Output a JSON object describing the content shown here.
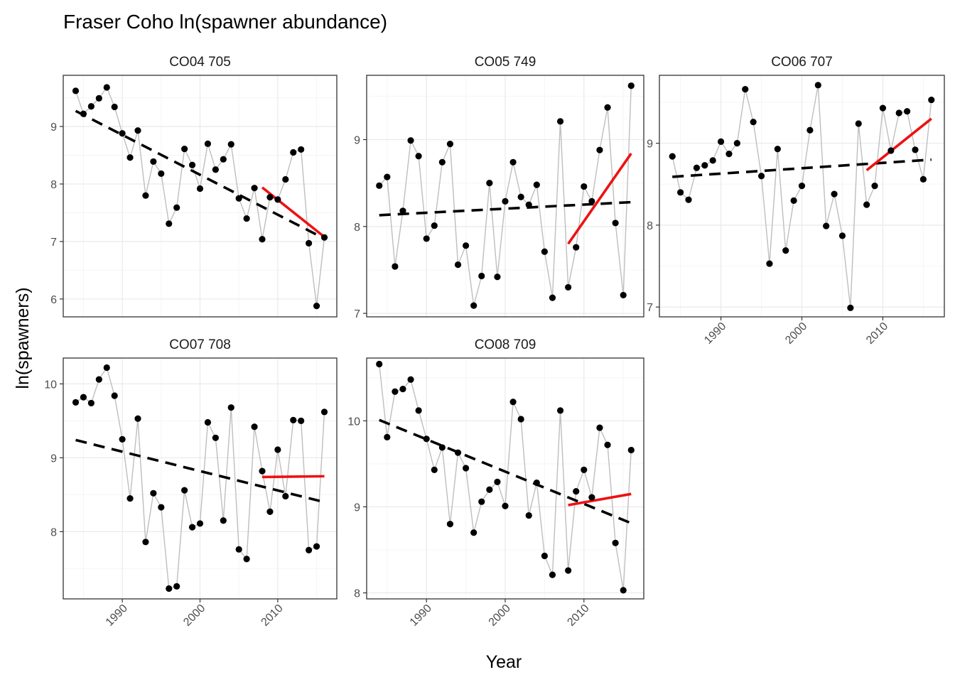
{
  "chart_data": {
    "type": "line",
    "title": "Fraser Coho ln(spawner abundance)",
    "xlabel": "Year",
    "ylabel": "ln(spawners)",
    "grid": true,
    "legend": "none",
    "colors": {
      "observed_line": "#bebebe",
      "points": "#000000",
      "long_term_trend": "#000000",
      "recent_trend": "#ee1111",
      "panel_border": "#333333",
      "grid_major": "#ebebeb",
      "grid_minor": "#f5f5f5"
    },
    "x_ticks": [
      1990,
      2000,
      2010
    ],
    "xlim": [
      1982.4,
      2017.6
    ],
    "panels": [
      {
        "label": "CO04 705",
        "ylim": [
          5.69,
          9.89
        ],
        "y_ticks": [
          6,
          7,
          8,
          9
        ],
        "x": [
          1984,
          1985,
          1986,
          1987,
          1988,
          1989,
          1990,
          1991,
          1992,
          1993,
          1994,
          1995,
          1996,
          1997,
          1998,
          1999,
          2000,
          2001,
          2002,
          2003,
          2004,
          2005,
          2006,
          2007,
          2008,
          2009,
          2010,
          2011,
          2012,
          2013,
          2014,
          2015,
          2016
        ],
        "y": [
          9.62,
          9.22,
          9.35,
          9.49,
          9.68,
          9.34,
          8.88,
          8.46,
          8.93,
          7.8,
          8.39,
          8.18,
          7.31,
          7.59,
          8.61,
          8.33,
          7.92,
          8.7,
          8.25,
          8.43,
          8.69,
          7.75,
          7.4,
          7.93,
          7.04,
          7.77,
          7.73,
          8.08,
          8.55,
          8.6,
          6.97,
          5.88,
          7.07
        ],
        "trend_long": {
          "x": [
            1984,
            2016
          ],
          "y": [
            9.27,
            7.05
          ]
        },
        "trend_recent": {
          "x": [
            2008,
            2016
          ],
          "y": [
            7.94,
            7.08
          ]
        }
      },
      {
        "label": "CO05 749",
        "ylim": [
          6.96,
          9.74
        ],
        "y_ticks": [
          7,
          8,
          9
        ],
        "x": [
          1984,
          1985,
          1986,
          1987,
          1988,
          1989,
          1990,
          1991,
          1992,
          1993,
          1994,
          1995,
          1996,
          1997,
          1998,
          1999,
          2000,
          2001,
          2002,
          2003,
          2004,
          2005,
          2006,
          2007,
          2008,
          2009,
          2010,
          2011,
          2012,
          2013,
          2014,
          2015,
          2016
        ],
        "y": [
          8.47,
          8.57,
          7.54,
          8.18,
          8.99,
          8.81,
          7.86,
          8.01,
          8.74,
          8.95,
          7.56,
          7.78,
          7.09,
          7.43,
          8.5,
          7.42,
          8.29,
          8.74,
          8.34,
          8.25,
          8.48,
          7.71,
          7.18,
          9.21,
          7.3,
          7.76,
          8.46,
          8.29,
          8.88,
          9.37,
          8.04,
          7.21,
          9.62
        ],
        "trend_long": {
          "x": [
            1984,
            2016
          ],
          "y": [
            8.13,
            8.28
          ]
        },
        "trend_recent": {
          "x": [
            2008,
            2016
          ],
          "y": [
            7.8,
            8.84
          ]
        }
      },
      {
        "label": "CO06 707",
        "ylim": [
          6.88,
          9.83
        ],
        "y_ticks": [
          7,
          8,
          9
        ],
        "x": [
          1984,
          1985,
          1986,
          1987,
          1988,
          1989,
          1990,
          1991,
          1992,
          1993,
          1994,
          1995,
          1996,
          1997,
          1998,
          1999,
          2000,
          2001,
          2002,
          2003,
          2004,
          2005,
          2006,
          2007,
          2008,
          2009,
          2010,
          2011,
          2012,
          2013,
          2014,
          2015,
          2016
        ],
        "y": [
          8.84,
          8.4,
          8.31,
          8.7,
          8.73,
          8.79,
          9.02,
          8.87,
          9.0,
          9.66,
          9.26,
          8.6,
          7.53,
          8.93,
          7.69,
          8.3,
          8.48,
          9.16,
          9.71,
          7.99,
          8.38,
          7.87,
          6.99,
          9.24,
          8.25,
          8.48,
          9.43,
          8.91,
          9.37,
          9.39,
          8.92,
          8.56,
          9.53
        ],
        "trend_long": {
          "x": [
            1984,
            2016
          ],
          "y": [
            8.59,
            8.8
          ]
        },
        "trend_recent": {
          "x": [
            2008,
            2016
          ],
          "y": [
            8.67,
            9.3
          ]
        }
      },
      {
        "label": "CO07 708",
        "ylim": [
          7.09,
          10.35
        ],
        "y_ticks": [
          8,
          9,
          10
        ],
        "x": [
          1984,
          1985,
          1986,
          1987,
          1988,
          1989,
          1990,
          1991,
          1992,
          1993,
          1994,
          1995,
          1996,
          1997,
          1998,
          1999,
          2000,
          2001,
          2002,
          2003,
          2004,
          2005,
          2006,
          2007,
          2008,
          2009,
          2010,
          2011,
          2012,
          2013,
          2014,
          2015,
          2016
        ],
        "y": [
          9.75,
          9.82,
          9.74,
          10.06,
          10.22,
          9.84,
          9.25,
          8.45,
          9.53,
          7.86,
          8.52,
          8.33,
          7.23,
          7.26,
          8.56,
          8.06,
          8.11,
          9.48,
          9.27,
          8.15,
          9.68,
          7.76,
          7.63,
          9.42,
          8.82,
          8.27,
          9.11,
          8.48,
          9.51,
          9.5,
          7.75,
          7.8,
          9.62
        ],
        "trend_long": {
          "x": [
            1984,
            2016
          ],
          "y": [
            9.24,
            8.4
          ]
        },
        "trend_recent": {
          "x": [
            2008,
            2016
          ],
          "y": [
            8.74,
            8.75
          ]
        }
      },
      {
        "label": "CO08 709",
        "ylim": [
          7.93,
          10.73
        ],
        "y_ticks": [
          8,
          9,
          10
        ],
        "x": [
          1984,
          1985,
          1986,
          1987,
          1988,
          1989,
          1990,
          1991,
          1992,
          1993,
          1994,
          1995,
          1996,
          1997,
          1998,
          1999,
          2000,
          2001,
          2002,
          2003,
          2004,
          2005,
          2006,
          2007,
          2008,
          2009,
          2010,
          2011,
          2012,
          2013,
          2014,
          2015,
          2016
        ],
        "y": [
          10.66,
          9.81,
          10.34,
          10.37,
          10.48,
          10.12,
          9.79,
          9.43,
          9.69,
          8.8,
          9.63,
          9.45,
          8.7,
          9.06,
          9.2,
          9.29,
          9.01,
          10.22,
          10.02,
          8.9,
          9.28,
          8.43,
          8.21,
          10.12,
          8.26,
          9.18,
          9.43,
          9.11,
          9.92,
          9.72,
          8.58,
          8.03,
          9.66
        ],
        "trend_long": {
          "x": [
            1984,
            2016
          ],
          "y": [
            10.01,
            8.81
          ]
        },
        "trend_recent": {
          "x": [
            2008,
            2016
          ],
          "y": [
            9.02,
            9.15
          ]
        }
      }
    ]
  }
}
